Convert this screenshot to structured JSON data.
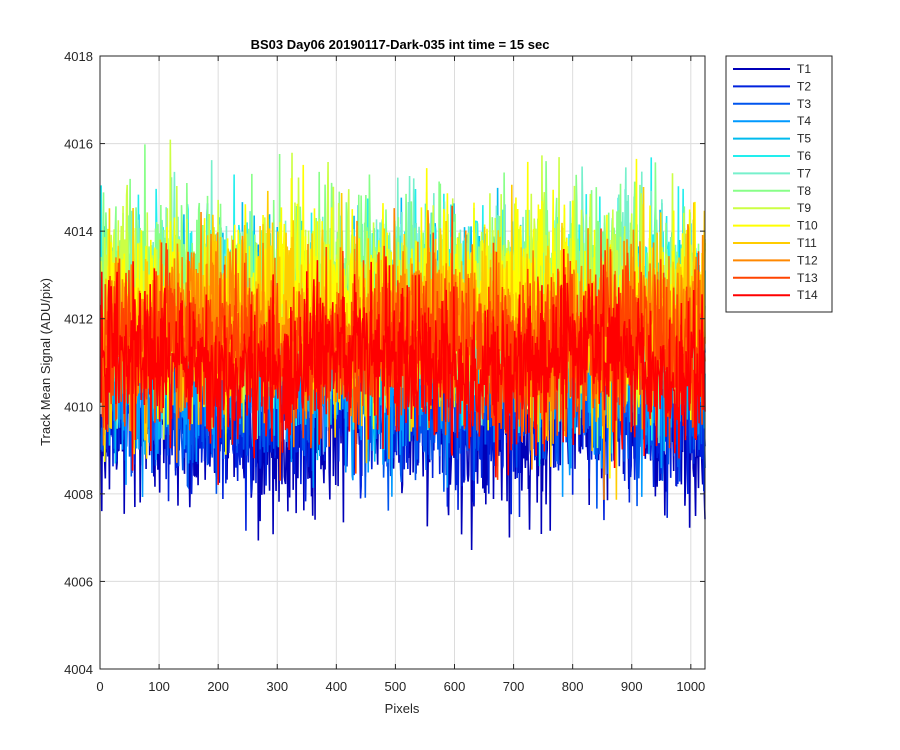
{
  "chart_data": {
    "type": "line",
    "title": "BS03 Day06 20190117-Dark-035 int time = 15 sec",
    "xlabel": "Pixels",
    "ylabel": "Track Mean Signal (ADU/pix)",
    "xlim": [
      0,
      1024
    ],
    "ylim": [
      4004,
      4018
    ],
    "xticks": [
      0,
      100,
      200,
      300,
      400,
      500,
      600,
      700,
      800,
      900,
      1000
    ],
    "yticks": [
      4004,
      4006,
      4008,
      4010,
      4012,
      4014,
      4016,
      4018
    ],
    "grid": true,
    "legend_position": "outside-top-right",
    "n_points": 1024,
    "series": [
      {
        "name": "T1",
        "color": "#0000b8",
        "mean": 4009.6,
        "noise": 0.95
      },
      {
        "name": "T2",
        "color": "#0022dd",
        "mean": 4010.0,
        "noise": 0.9
      },
      {
        "name": "T3",
        "color": "#0055ee",
        "mean": 4010.4,
        "noise": 0.9
      },
      {
        "name": "T4",
        "color": "#0099ff",
        "mean": 4011.0,
        "noise": 1.0
      },
      {
        "name": "T5",
        "color": "#00bbee",
        "mean": 4011.8,
        "noise": 1.1
      },
      {
        "name": "T6",
        "color": "#22eeee",
        "mean": 4012.2,
        "noise": 1.1
      },
      {
        "name": "T7",
        "color": "#77f0cc",
        "mean": 4012.4,
        "noise": 1.1
      },
      {
        "name": "T8",
        "color": "#88ff88",
        "mean": 4012.6,
        "noise": 1.1
      },
      {
        "name": "T9",
        "color": "#ccff44",
        "mean": 4012.4,
        "noise": 1.05
      },
      {
        "name": "T10",
        "color": "#ffff00",
        "mean": 4012.2,
        "noise": 1.05
      },
      {
        "name": "T11",
        "color": "#ffcc00",
        "mean": 4011.9,
        "noise": 1.05
      },
      {
        "name": "T12",
        "color": "#ff8800",
        "mean": 4011.6,
        "noise": 1.0
      },
      {
        "name": "T13",
        "color": "#ff4400",
        "mean": 4011.3,
        "noise": 0.95
      },
      {
        "name": "T14",
        "color": "#ff0000",
        "mean": 4011.0,
        "noise": 0.85
      }
    ]
  }
}
